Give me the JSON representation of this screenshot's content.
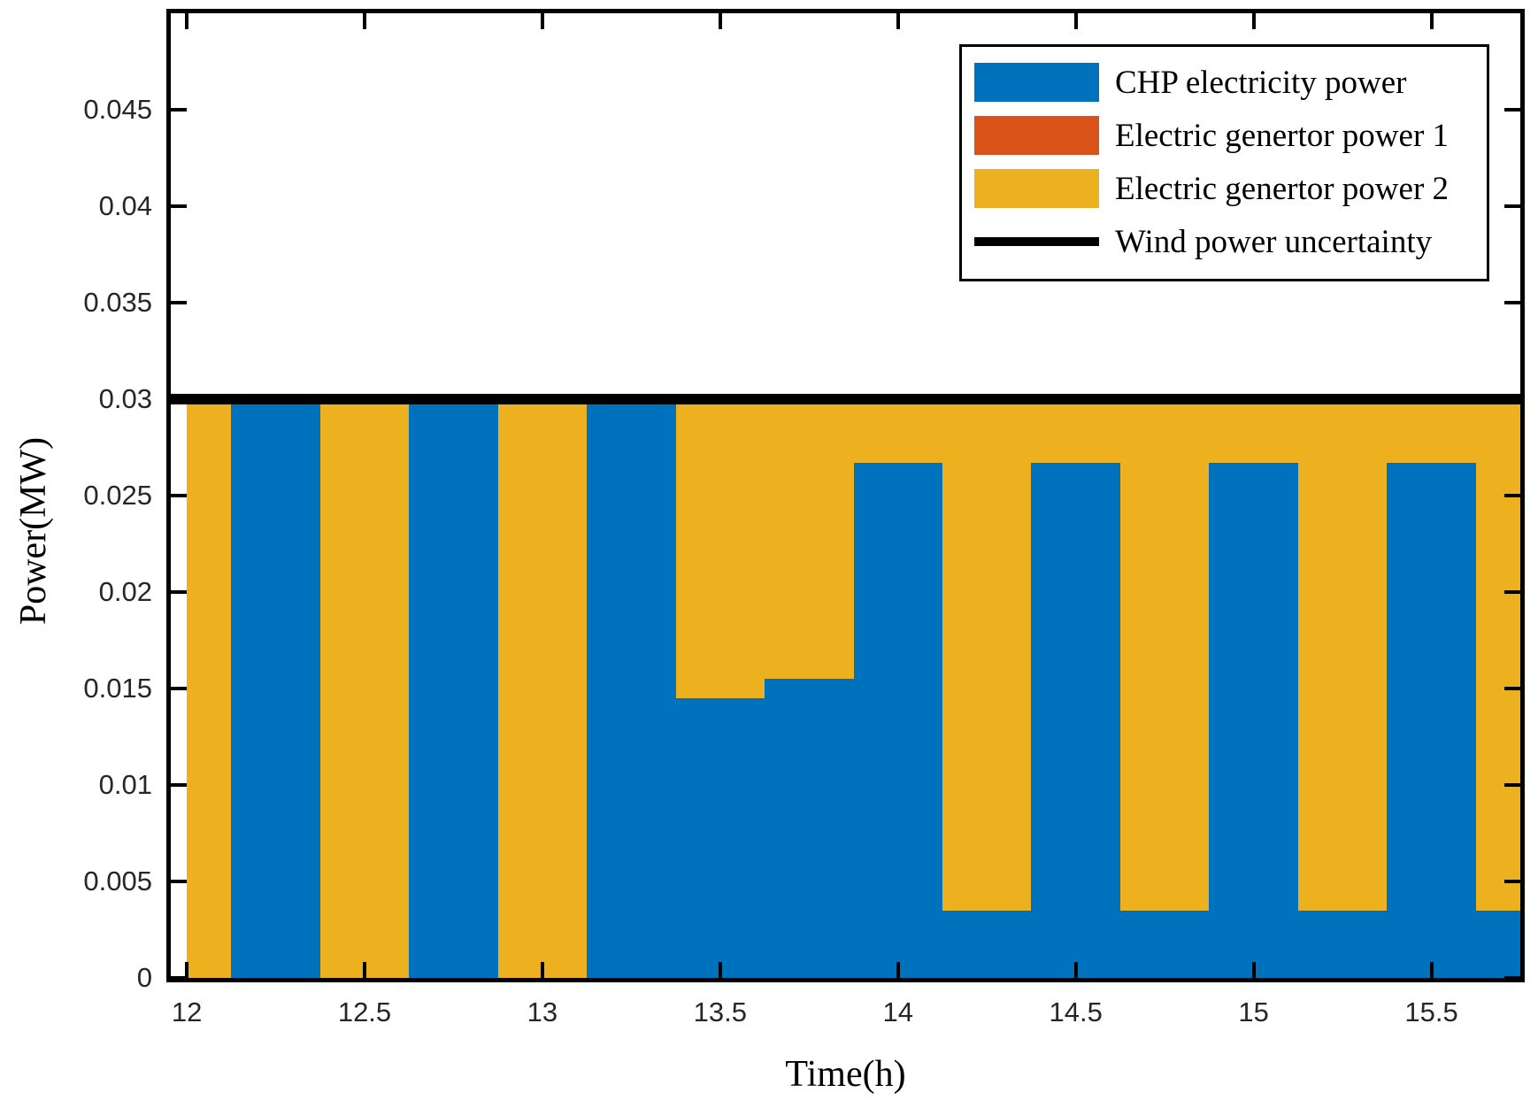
{
  "figure": {
    "background": "#ffffff"
  },
  "chart_data": {
    "type": "bar",
    "stacked": true,
    "title": "",
    "xlabel": "Time(h)",
    "ylabel": "Power(MW)",
    "xlim": [
      11.955,
      15.75
    ],
    "ylim": [
      0,
      0.05
    ],
    "grid": false,
    "legend_position": "top-right",
    "bar_width": 0.25,
    "bar_clip": [
      12,
      15.75
    ],
    "xticks": [
      12,
      12.5,
      13,
      13.5,
      14,
      14.5,
      15,
      15.5
    ],
    "xtick_labels": [
      "12",
      "12.5",
      "13",
      "13.5",
      "14",
      "14.5",
      "15",
      "15.5"
    ],
    "yticks": [
      0,
      0.005,
      0.01,
      0.015,
      0.02,
      0.025,
      0.03,
      0.035,
      0.04,
      0.045
    ],
    "ytick_labels": [
      "0",
      "0.005",
      "0.01",
      "0.015",
      "0.02",
      "0.025",
      "0.03",
      "0.035",
      "0.04",
      "0.045"
    ],
    "x": [
      12,
      12.25,
      12.5,
      12.75,
      13,
      13.25,
      13.5,
      13.75,
      14,
      14.25,
      14.5,
      14.75,
      15,
      15.25,
      15.5,
      15.75
    ],
    "series": [
      {
        "name": "CHP electricity power",
        "type": "bar",
        "color": "#0072BD",
        "values": [
          0,
          0.03,
          0,
          0.03,
          0,
          0.03,
          0.0145,
          0.0155,
          0.0267,
          0.0035,
          0.0267,
          0.0035,
          0.0267,
          0.0035,
          0.0267,
          0.0035
        ]
      },
      {
        "name": "Electric genertor power 1",
        "type": "bar",
        "color": "#D95319",
        "values": [
          0,
          0,
          0,
          0,
          0,
          0,
          0,
          0,
          0,
          0,
          0,
          0,
          0,
          0,
          0,
          0
        ]
      },
      {
        "name": "Electric genertor power 2",
        "type": "bar",
        "color": "#EDB120",
        "values": [
          0.03,
          0,
          0.03,
          0,
          0.03,
          0,
          0.0155,
          0.0145,
          0.0033,
          0.0265,
          0.0033,
          0.0265,
          0.0033,
          0.0265,
          0.0033,
          0.0265
        ]
      },
      {
        "name": "Wind power uncertainty",
        "type": "line",
        "color": "#000000",
        "constant_value": 0.03,
        "values": [
          0.03,
          0.03,
          0.03,
          0.03,
          0.03,
          0.03,
          0.03,
          0.03,
          0.03,
          0.03,
          0.03,
          0.03,
          0.03,
          0.03,
          0.03,
          0.03
        ]
      }
    ]
  }
}
